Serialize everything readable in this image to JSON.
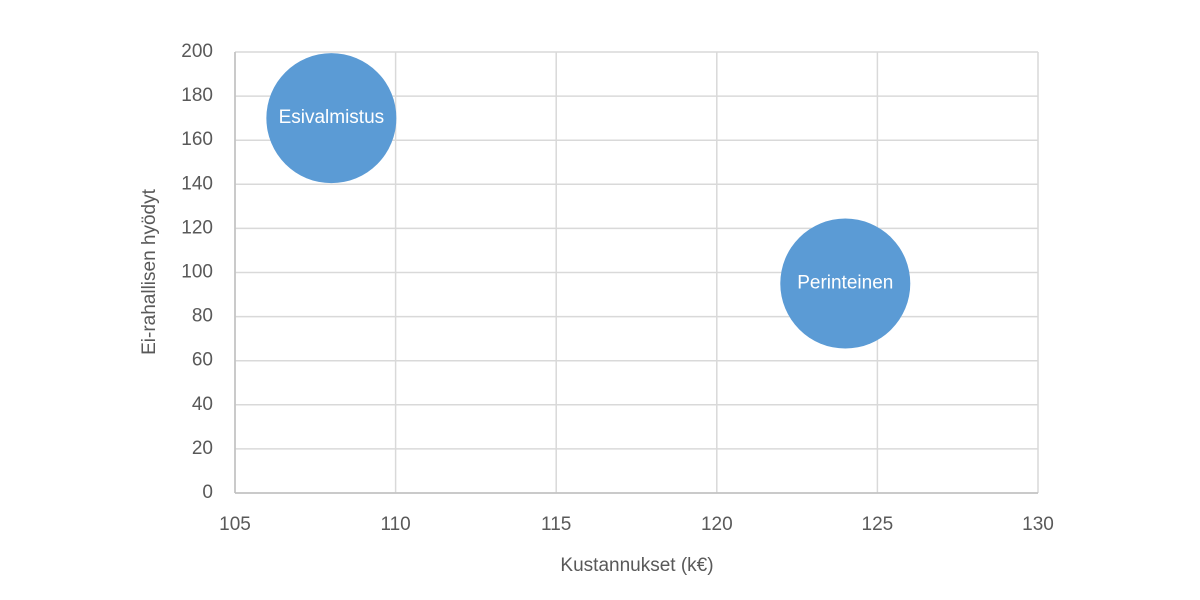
{
  "chart_data": {
    "type": "scatter",
    "x_label": "Kustannukset (k€)",
    "y_label": "Ei-rahallisen hyödyt",
    "point_labels": [
      "Esivalmistus",
      "Perinteinen"
    ],
    "x": [
      108,
      124
    ],
    "values": [
      170,
      95
    ],
    "color": "#5b9bd5",
    "xlim": [
      105,
      130
    ],
    "xticks": [
      105,
      110,
      115,
      120,
      125,
      130
    ],
    "ylim": [
      0,
      200
    ],
    "yticks": [
      0,
      20,
      40,
      60,
      80,
      100,
      120,
      140,
      160,
      180,
      200
    ],
    "grid": true
  }
}
